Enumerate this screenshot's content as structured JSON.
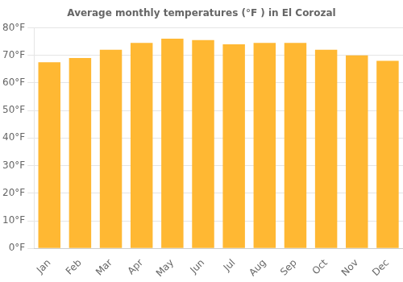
{
  "chart_data": {
    "type": "bar",
    "title": "Average monthly temperatures (°F ) in El Corozal",
    "categories": [
      "Jan",
      "Feb",
      "Mar",
      "Apr",
      "May",
      "Jun",
      "Jul",
      "Aug",
      "Sep",
      "Oct",
      "Nov",
      "Dec"
    ],
    "values": [
      67.5,
      69.0,
      72.0,
      74.5,
      76.0,
      75.5,
      74.0,
      74.5,
      74.5,
      72.0,
      70.0,
      68.0
    ],
    "color": "#FFB833",
    "ylim": [
      0,
      80
    ],
    "yticks": [
      {
        "value": 0,
        "label": "0°F"
      },
      {
        "value": 10,
        "label": "10°F"
      },
      {
        "value": 20,
        "label": "20°F"
      },
      {
        "value": 30,
        "label": "30°F"
      },
      {
        "value": 40,
        "label": "40°F"
      },
      {
        "value": 50,
        "label": "50°F"
      },
      {
        "value": 60,
        "label": "60°F"
      },
      {
        "value": 70,
        "label": "70°F"
      },
      {
        "value": 80,
        "label": "80°F"
      }
    ],
    "grid": true
  }
}
